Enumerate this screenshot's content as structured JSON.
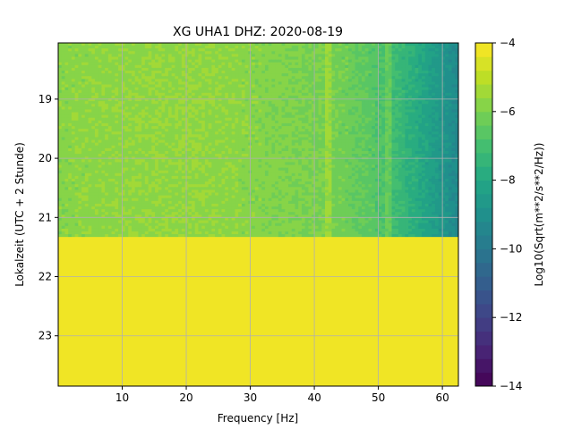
{
  "chart_data": {
    "type": "heatmap",
    "title": "XG UHA1  DHZ: 2020-08-19",
    "xlabel": "Frequency [Hz]",
    "ylabel": "Lokalzeit (UTC + 2 Stunde)",
    "xlim": [
      0,
      62.5
    ],
    "ylim": [
      23.85,
      18.05
    ],
    "y_inverted": true,
    "x_ticks": [
      10,
      20,
      30,
      40,
      50,
      60
    ],
    "y_ticks": [
      19,
      20,
      21,
      22,
      23
    ],
    "grid": true,
    "colorbar": {
      "label": "Log10(Sqrt(m**2/s**2/Hz))",
      "range": [
        -14,
        -4
      ],
      "ticks": [
        -4,
        -6,
        -8,
        -10,
        -12,
        -14
      ],
      "colormap": "viridis",
      "levels": 25
    },
    "data_end_hour": 21.33,
    "fill_value_after_end": -4,
    "spectrum_profile": [
      {
        "freq": 0,
        "value": -5.8
      },
      {
        "freq": 10,
        "value": -5.7
      },
      {
        "freq": 20,
        "value": -5.6
      },
      {
        "freq": 30,
        "value": -5.8
      },
      {
        "freq": 40,
        "value": -6.0
      },
      {
        "freq": 45,
        "value": -6.2
      },
      {
        "freq": 50,
        "value": -6.7
      },
      {
        "freq": 53,
        "value": -7.2
      },
      {
        "freq": 56,
        "value": -7.8
      },
      {
        "freq": 59,
        "value": -8.5
      },
      {
        "freq": 62.5,
        "value": -9.3
      }
    ],
    "spectral_lines_hz": [
      42.3,
      51.7
    ]
  }
}
